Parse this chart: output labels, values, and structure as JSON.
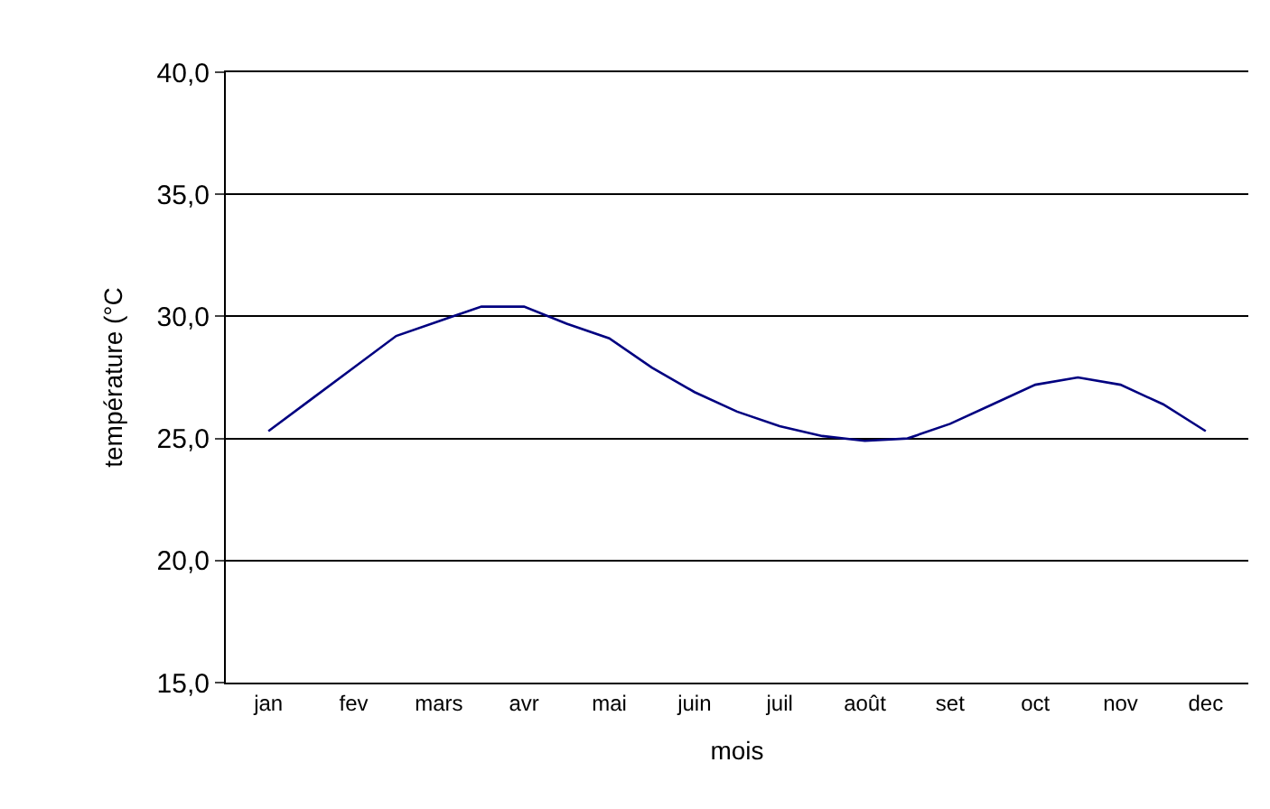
{
  "chart_data": {
    "type": "line",
    "xlabel": "mois",
    "ylabel": "température (°C",
    "categories": [
      "jan",
      null,
      "fev",
      null,
      "mars",
      null,
      "avr",
      null,
      "mai",
      null,
      "juin",
      null,
      "juil",
      null,
      "août",
      null,
      "set",
      null,
      "oct",
      null,
      "nov",
      null,
      "dec"
    ],
    "series": [
      {
        "color": "#000080",
        "values": [
          25.3,
          26.6,
          27.9,
          29.2,
          29.8,
          30.4,
          30.4,
          29.7,
          29.1,
          27.9,
          26.9,
          26.1,
          25.5,
          25.1,
          24.9,
          25.0,
          25.6,
          26.4,
          27.2,
          27.5,
          27.2,
          26.4,
          25.3
        ]
      }
    ],
    "ylim": [
      15,
      40
    ],
    "yticks": [
      {
        "value": 15,
        "label": "15,0"
      },
      {
        "value": 20,
        "label": "20,0"
      },
      {
        "value": 25,
        "label": "25,0"
      },
      {
        "value": 30,
        "label": "30,0"
      },
      {
        "value": 35,
        "label": "35,0"
      },
      {
        "value": 40,
        "label": "40,0"
      }
    ],
    "grid": "y",
    "marker": "none",
    "line_style": "solid"
  }
}
